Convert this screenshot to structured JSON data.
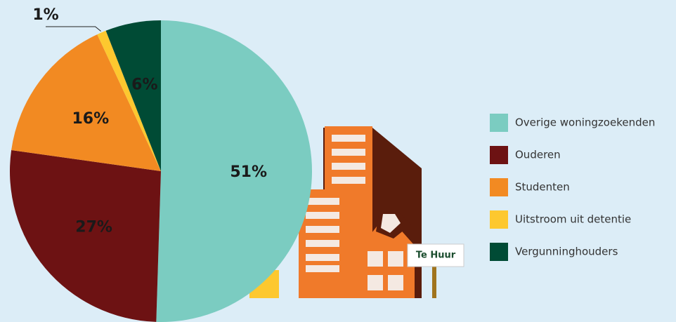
{
  "chart_data": {
    "type": "pie",
    "categories": [
      "Overige woningzoekenden",
      "Ouderen",
      "Studenten",
      "Uitstroom uit detentie",
      "Vergunninghouders"
    ],
    "values": [
      51,
      27,
      16,
      1,
      6
    ],
    "value_labels": [
      "51%",
      "27%",
      "16%",
      "1%",
      "6%"
    ],
    "colors": [
      "#7bccc1",
      "#6d1213",
      "#f28a22",
      "#fdc82f",
      "#004b35"
    ],
    "annotations": [
      "Te Huur"
    ]
  }
}
